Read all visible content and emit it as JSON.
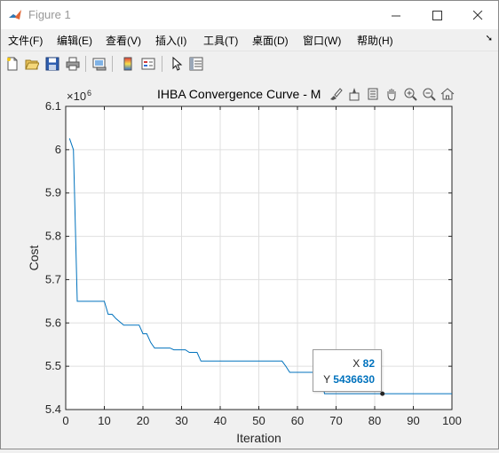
{
  "window": {
    "title": "Figure 1",
    "minimize_icon": "minimize-icon",
    "maximize_icon": "maximize-icon",
    "close_icon": "close-icon"
  },
  "menubar": {
    "items": [
      {
        "label": "文件(F)"
      },
      {
        "label": "编辑(E)"
      },
      {
        "label": "查看(V)"
      },
      {
        "label": "插入(I)"
      },
      {
        "label": "工具(T)"
      },
      {
        "label": "桌面(D)"
      },
      {
        "label": "窗口(W)"
      },
      {
        "label": "帮助(H)"
      }
    ],
    "overflow_icon": "overflow-arrow-icon"
  },
  "toolbar": {
    "buttons": [
      "new-figure-icon",
      "open-file-icon",
      "save-icon",
      "print-icon",
      "link-plot-icon",
      "insert-colorbar-icon",
      "insert-legend-icon",
      "edit-plot-icon",
      "property-inspector-icon"
    ]
  },
  "axes_toolbar": {
    "buttons": [
      "brush-icon",
      "data-tips-icon",
      "rotate-icon",
      "zoom-in-icon",
      "zoom-out-icon",
      "pan-icon",
      "home-icon"
    ]
  },
  "chart_data": {
    "type": "line",
    "title": "IHBA Convergence Curve - M",
    "xlabel": "Iteration",
    "ylabel": "Cost",
    "exponent_label": "×10",
    "exponent_power": "6",
    "xlim": [
      0,
      100
    ],
    "ylim": [
      5.4,
      6.1
    ],
    "xticks": [
      0,
      10,
      20,
      30,
      40,
      50,
      60,
      70,
      80,
      90,
      100
    ],
    "yticks": [
      5.4,
      5.5,
      5.6,
      5.7,
      5.8,
      5.9,
      6,
      6.1
    ],
    "grid": true,
    "line_color": "#0072bd",
    "series": [
      {
        "x": [
          1,
          2,
          3,
          4,
          10,
          11,
          12,
          13,
          15,
          16,
          17,
          18,
          19,
          20,
          21,
          22,
          23,
          24,
          27,
          28,
          31,
          32,
          34,
          35,
          56,
          57,
          58,
          61,
          62,
          66,
          67,
          100
        ],
        "y": [
          6.026,
          6.0,
          5.65,
          5.65,
          5.65,
          5.62,
          5.62,
          5.61,
          5.595,
          5.595,
          5.595,
          5.595,
          5.595,
          5.575,
          5.575,
          5.555,
          5.542,
          5.542,
          5.542,
          5.538,
          5.538,
          5.532,
          5.532,
          5.512,
          5.512,
          5.5,
          5.486,
          5.486,
          5.486,
          5.486,
          5.43663,
          5.43663
        ]
      }
    ],
    "datatip": {
      "x_key": "X",
      "x_value": "82",
      "y_key": "Y",
      "y_value": "5436630",
      "point_x": 82,
      "point_y": 5.43663
    }
  }
}
